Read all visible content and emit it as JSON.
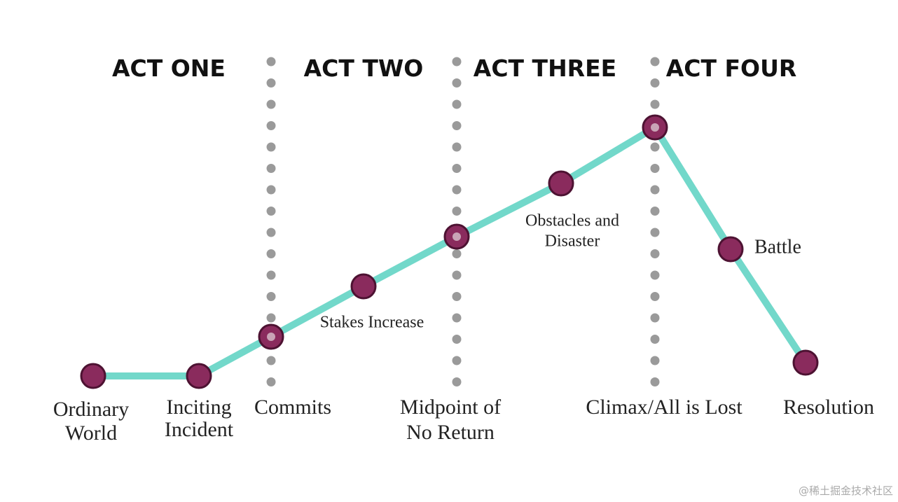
{
  "acts": [
    "ACT ONE",
    "ACT TWO",
    "ACT THREE",
    "ACT FOUR"
  ],
  "nodes": [
    {
      "label": [
        "Ordinary",
        "World"
      ]
    },
    {
      "label": [
        "Inciting",
        "Incident"
      ]
    },
    {
      "label": [
        "Commits"
      ]
    },
    {
      "label": [
        "Stakes Increase"
      ]
    },
    {
      "label": [
        "Midpoint of",
        "No Return"
      ]
    },
    {
      "label": [
        "Obstacles and",
        "Disaster"
      ]
    },
    {
      "label": [
        "Climax/All is Lost"
      ]
    },
    {
      "label": [
        "Battle"
      ]
    },
    {
      "label": [
        "Resolution"
      ]
    }
  ],
  "watermark": "@稀土掘金技术社区"
}
